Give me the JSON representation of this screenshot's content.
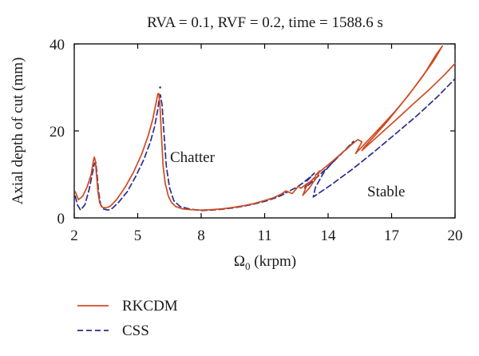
{
  "chart_data": {
    "type": "line",
    "title": "RVA = 0.1, RVF = 0.2, time = 1588.6 s",
    "xlabel_symbol": "Ω",
    "xlabel_sub": "0",
    "xlabel_unit": " (krpm)",
    "ylabel": "Axial depth of cut (mm)",
    "xlim": [
      2,
      20
    ],
    "ylim": [
      0,
      40
    ],
    "xticks": [
      2,
      5,
      8,
      11,
      14,
      17,
      20
    ],
    "yticks": [
      0,
      20,
      40
    ],
    "grid": false,
    "annotations": [
      {
        "text": "Chatter",
        "x": 6.8,
        "y": 13.7
      },
      {
        "text": "Stable",
        "x": 16.6,
        "y": 5.6
      }
    ],
    "legend_position": "bottom-left",
    "series": [
      {
        "name": "RKCDM",
        "color": "#d04a1f",
        "dash": "",
        "x": [
          2.05,
          2.2,
          2.4,
          2.6,
          2.8,
          2.9,
          2.95,
          3.0,
          3.05,
          3.12,
          3.2,
          3.3,
          3.5,
          3.7,
          4.0,
          4.4,
          4.8,
          5.2,
          5.5,
          5.7,
          5.85,
          5.95,
          6.0,
          6.05,
          6.12,
          6.2,
          6.3,
          6.45,
          6.6,
          6.8,
          7.1,
          7.5,
          8.0,
          8.5,
          9.0,
          9.5,
          10.0,
          10.5,
          11.0,
          11.4,
          11.8,
          12.0,
          12.3,
          12.6,
          12.7,
          13.2,
          13.4,
          13.0,
          12.8,
          13.1,
          13.3,
          13.5,
          13.6,
          13.4,
          14.2,
          15.0,
          15.4,
          15.6,
          15.3,
          16.0,
          16.6,
          17.2,
          17.8,
          18.4,
          19.0,
          19.4,
          19.1,
          18.6,
          18.0,
          17.4,
          16.8,
          16.2,
          15.7,
          15.6,
          16.4,
          17.2,
          18.0,
          18.8,
          19.5,
          20.0
        ],
        "y": [
          6.0,
          4.2,
          5.0,
          7.0,
          10.0,
          13.0,
          14.0,
          13.0,
          10.0,
          6.0,
          3.5,
          2.5,
          2.3,
          2.7,
          4.2,
          7.0,
          10.5,
          14.8,
          19.0,
          22.5,
          26.0,
          28.5,
          28.6,
          26.0,
          19.0,
          12.0,
          8.0,
          5.0,
          3.5,
          2.6,
          2.1,
          1.9,
          1.8,
          1.9,
          2.1,
          2.4,
          2.8,
          3.3,
          4.0,
          4.6,
          5.5,
          6.2,
          5.6,
          7.3,
          6.8,
          8.5,
          9.5,
          7.5,
          5.2,
          6.8,
          8.2,
          9.6,
          10.8,
          9.8,
          13.0,
          16.4,
          18.0,
          17.5,
          14.8,
          18.4,
          21.5,
          24.7,
          28.2,
          32.1,
          36.2,
          39.5,
          37.5,
          33.5,
          29.5,
          25.8,
          22.2,
          18.9,
          16.2,
          15.5,
          19.0,
          22.5,
          26.1,
          29.6,
          32.9,
          35.5
        ]
      },
      {
        "name": "CSS",
        "color": "#2b2d8e",
        "dash": "7 4",
        "x": [
          2.05,
          2.15,
          2.3,
          2.5,
          2.7,
          2.85,
          2.95,
          3.02,
          3.08,
          3.15,
          3.25,
          3.4,
          3.6,
          3.8,
          4.1,
          4.5,
          4.9,
          5.3,
          5.6,
          5.8,
          5.95,
          6.02,
          6.07,
          6.15,
          6.25,
          6.35,
          6.5,
          6.7,
          7.0,
          7.5,
          8.0,
          8.5,
          9.0,
          9.5,
          10.0,
          10.5,
          11.0,
          11.5,
          11.8,
          12.1,
          12.0,
          12.5,
          12.8,
          13.0,
          13.2,
          13.35,
          13.0,
          12.9,
          13.4,
          14.0,
          14.6,
          15.2,
          15.1,
          14.4,
          13.8,
          13.4,
          13.3,
          14.2,
          15.2,
          16.2,
          17.2,
          18.2,
          19.2,
          20.0
        ],
        "y": [
          5.0,
          3.0,
          1.8,
          3.0,
          6.5,
          10.0,
          12.5,
          12.8,
          10.0,
          6.0,
          3.0,
          2.0,
          1.8,
          2.2,
          3.6,
          6.0,
          9.5,
          13.5,
          17.5,
          21.0,
          25.0,
          27.5,
          28.3,
          26.0,
          19.0,
          12.0,
          7.0,
          4.0,
          2.6,
          2.0,
          1.7,
          1.8,
          2.0,
          2.3,
          2.7,
          3.2,
          3.8,
          4.6,
          5.2,
          6.0,
          5.8,
          7.0,
          8.0,
          8.8,
          9.6,
          10.3,
          8.5,
          6.8,
          9.0,
          11.7,
          14.6,
          17.6,
          16.8,
          13.8,
          10.5,
          7.0,
          4.8,
          7.8,
          11.4,
          15.3,
          19.4,
          23.5,
          28.0,
          32.0
        ]
      }
    ],
    "extra_marks": [
      {
        "name": "rkcdm-spike-dot",
        "x": 6.06,
        "y": 30.0,
        "color": "#2b2d8e"
      }
    ]
  }
}
